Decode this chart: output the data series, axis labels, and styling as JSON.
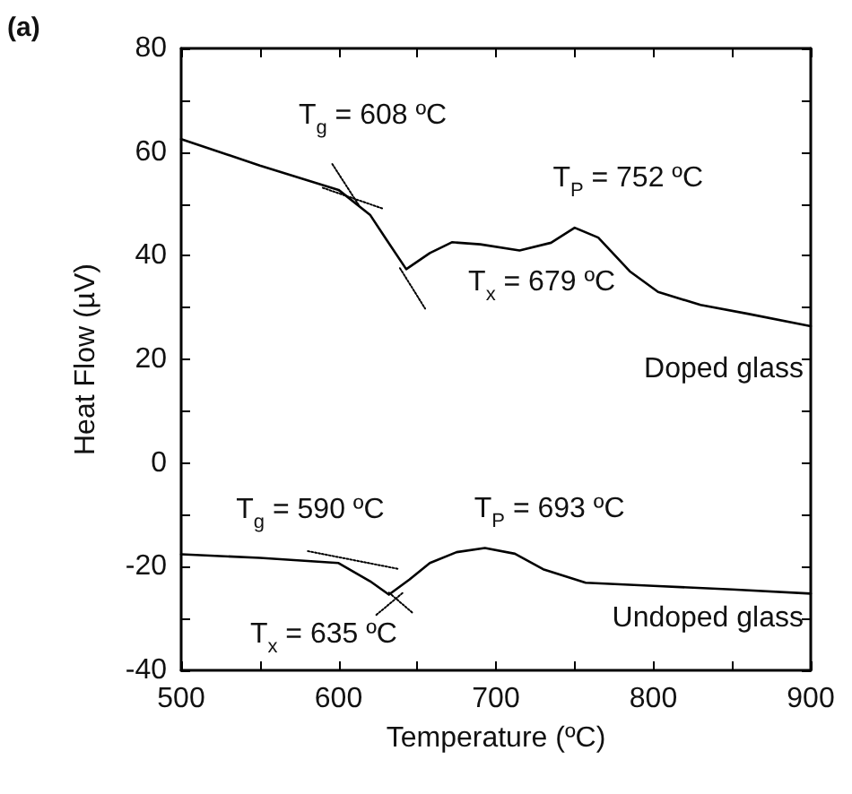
{
  "chart_data": {
    "type": "line",
    "xlabel": "Temperature (ºC)",
    "ylabel": "Heat Flow (µV)",
    "xlim": [
      500,
      900
    ],
    "xticks": [
      500,
      600,
      700,
      800,
      900
    ],
    "ylim": [
      -40,
      80
    ],
    "yticks": [
      -40,
      -20,
      0,
      20,
      40,
      60,
      80
    ],
    "grid": false,
    "marker": "none",
    "line_style": "solid",
    "series": [
      {
        "color": "#000000",
        "x": [
          500,
          550,
          600,
          620,
          630,
          643,
          658,
          672,
          690,
          715,
          735,
          750,
          765,
          785,
          803,
          830,
          860,
          900
        ],
        "values": [
          62.5,
          57.4,
          52.7,
          47.9,
          43.3,
          37.4,
          40.5,
          42.6,
          42.2,
          41,
          42.5,
          45.4,
          43.5,
          37,
          33,
          30.5,
          28.8,
          26.4
        ]
      },
      {
        "color": "#000000",
        "x": [
          500,
          550,
          600,
          620,
          632,
          645,
          658,
          675,
          693,
          712,
          730,
          757,
          800,
          850,
          900
        ],
        "values": [
          -17.6,
          -18.3,
          -19.3,
          -22.8,
          -25.4,
          -22.5,
          -19.3,
          -17.2,
          -16.4,
          -17.5,
          -20.5,
          -23.1,
          -23.7,
          -24.4,
          -25.2
        ]
      },
      {
        "type": "line",
        "line_style": "dotted",
        "color": "#000000",
        "x": [
          596,
          613
        ],
        "values": [
          57.7,
          49.7
        ]
      },
      {
        "type": "line",
        "line_style": "dotted",
        "color": "#000000",
        "x": [
          590,
          628
        ],
        "values": [
          53.1,
          49.1
        ]
      },
      {
        "type": "line",
        "line_style": "dotted",
        "color": "#000000",
        "x": [
          639,
          655
        ],
        "values": [
          37.6,
          29.8
        ]
      },
      {
        "type": "line",
        "line_style": "dotted",
        "color": "#000000",
        "x": [
          580.5,
          637.5
        ],
        "values": [
          -17,
          -20.4
        ]
      },
      {
        "type": "line",
        "line_style": "dotted",
        "color": "#000000",
        "x": [
          624,
          641
        ],
        "values": [
          -29.3,
          -25
        ]
      },
      {
        "type": "line",
        "line_style": "dotted",
        "color": "#000000",
        "x": [
          632,
          647
        ],
        "values": [
          -25,
          -28.9
        ]
      }
    ],
    "annotations": [
      "(a)",
      {
        "text": "T$_{g}$ = 608 ºC",
        "x": 608,
        "y": 50.8
      },
      {
        "text": "T$_{P}$ = 752 ºC",
        "x": 752,
        "y": 45.2
      },
      {
        "text": "T$_{x}$ = 679 ºC",
        "x": 679,
        "y": 42.4
      },
      {
        "text": "T$_{g}$ = 590 ºC",
        "x": 590,
        "y": -19.1
      },
      {
        "text": "T$_{P}$ = 693 ºC",
        "x": 693,
        "y": -16.4
      },
      {
        "text": "T$_{x}$ = 635 ºC",
        "x": 635,
        "y": -24.7
      },
      "Doped glass",
      "Undoped glass"
    ]
  }
}
